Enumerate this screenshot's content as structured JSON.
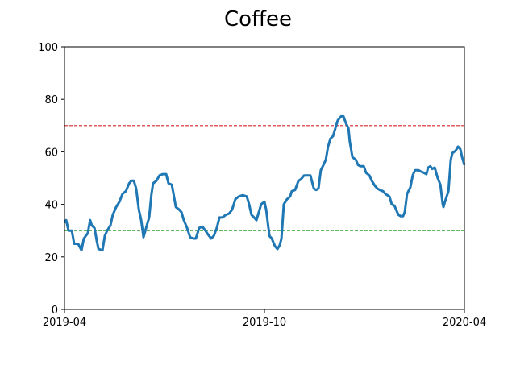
{
  "chart_data": {
    "type": "line",
    "title": "Coffee",
    "x": [
      0,
      0.05,
      0.12,
      0.22,
      0.29,
      0.41,
      0.51,
      0.58,
      0.7,
      0.77,
      0.82,
      0.9,
      0.97,
      1.02,
      1.14,
      1.21,
      1.28,
      1.38,
      1.45,
      1.55,
      1.65,
      1.74,
      1.84,
      1.94,
      2.01,
      2.08,
      2.15,
      2.23,
      2.3,
      2.37,
      2.47,
      2.54,
      2.61,
      2.66,
      2.76,
      2.85,
      2.95,
      3.05,
      3.12,
      3.22,
      3.27,
      3.34,
      3.44,
      3.51,
      3.58,
      3.68,
      3.77,
      3.87,
      3.94,
      4.04,
      4.14,
      4.23,
      4.31,
      4.4,
      4.48,
      4.57,
      4.65,
      4.74,
      4.84,
      4.94,
      5.03,
      5.13,
      5.23,
      5.35,
      5.47,
      5.54,
      5.61,
      5.69,
      5.76,
      5.83,
      5.9,
      6.0,
      6.05,
      6.15,
      6.22,
      6.32,
      6.39,
      6.46,
      6.51,
      6.58,
      6.68,
      6.77,
      6.82,
      6.92,
      7.02,
      7.09,
      7.19,
      7.28,
      7.38,
      7.48,
      7.55,
      7.62,
      7.69,
      7.77,
      7.84,
      7.91,
      7.98,
      8.06,
      8.13,
      8.2,
      8.3,
      8.37,
      8.44,
      8.52,
      8.56,
      8.64,
      8.74,
      8.81,
      8.88,
      8.98,
      9.05,
      9.15,
      9.22,
      9.32,
      9.39,
      9.46,
      9.56,
      9.63,
      9.75,
      9.82,
      9.9,
      9.95,
      10.02,
      10.09,
      10.16,
      10.21,
      10.28,
      10.38,
      10.45,
      10.52,
      10.62,
      10.69,
      10.79,
      10.86,
      10.91,
      10.98,
      11.03,
      11.11,
      11.2,
      11.28,
      11.35,
      11.37,
      11.44,
      11.52,
      11.59,
      11.64,
      11.74,
      11.81,
      11.88,
      11.93,
      12.0
    ],
    "series": [
      {
        "color": "#1f77b4",
        "values": [
          33,
          34,
          30,
          30,
          25,
          25,
          22.5,
          27,
          29,
          34,
          32,
          31,
          26,
          23,
          22.5,
          28,
          30,
          32,
          36,
          39,
          41,
          44,
          45,
          48,
          49,
          49,
          46,
          38,
          34,
          27.5,
          32,
          35,
          44,
          48,
          49,
          51,
          51.5,
          51.5,
          48,
          47.5,
          44,
          39,
          38,
          37,
          34,
          31,
          27.5,
          27,
          27,
          31,
          31.5,
          30,
          28.5,
          27,
          28,
          31,
          35,
          35,
          36,
          36.5,
          38,
          42,
          43,
          43.5,
          43,
          40,
          36,
          35,
          34,
          37,
          40,
          41,
          38,
          28,
          27,
          24,
          23,
          24.5,
          27,
          40,
          42,
          43,
          45,
          45.5,
          49,
          49.5,
          51,
          51,
          51,
          46,
          45.5,
          46,
          53,
          55,
          57,
          62,
          65,
          66,
          69,
          72,
          73.5,
          73.5,
          71,
          69,
          64,
          58,
          57,
          55,
          54.5,
          54.5,
          52,
          51,
          49,
          47,
          46,
          45.5,
          45,
          44,
          43,
          40,
          39.5,
          38,
          36,
          35.5,
          35.5,
          37,
          44,
          46.5,
          51,
          53,
          53,
          52.5,
          52,
          51.5,
          54,
          54.5,
          53.5,
          54,
          50,
          47.5,
          40,
          39,
          42,
          45,
          57,
          59.5,
          60.5,
          62,
          61,
          58,
          55
        ]
      }
    ],
    "hlines": [
      {
        "value": 70,
        "color": "#d62728"
      },
      {
        "value": 30,
        "color": "#2ca02c"
      }
    ],
    "xlim": [
      0,
      12
    ],
    "xticks": [
      {
        "value": 0,
        "label": "2019-04"
      },
      {
        "value": 6,
        "label": "2019-10"
      },
      {
        "value": 12,
        "label": "2020-04"
      }
    ],
    "ylim": [
      0,
      100
    ],
    "yticks": [
      0,
      20,
      40,
      60,
      80,
      100
    ]
  }
}
